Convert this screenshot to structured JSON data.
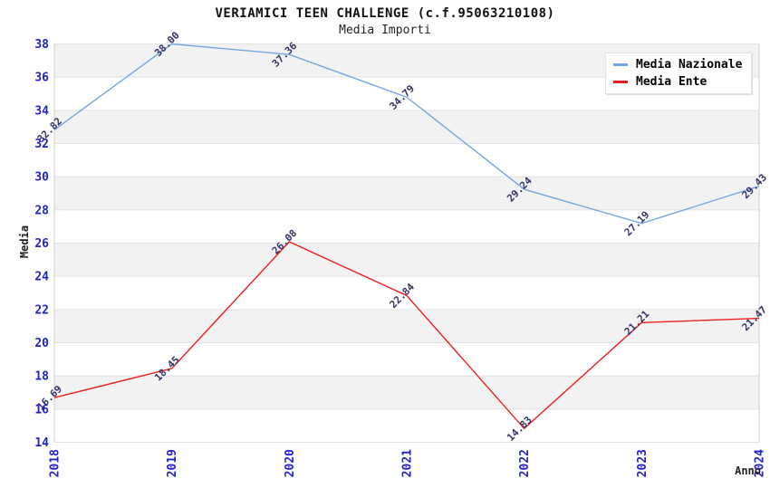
{
  "header": {
    "title": "VERIAMICI TEEN CHALLENGE (c.f.95063210108)",
    "subtitle": "Media Importi"
  },
  "axes": {
    "x_label": "Anno",
    "y_label": "Media",
    "y_ticks": [
      38,
      36,
      34,
      32,
      30,
      28,
      26,
      24,
      22,
      20,
      18,
      16,
      14
    ],
    "x_ticks": [
      "2018",
      "2019",
      "2020",
      "2021",
      "2022",
      "2023",
      "2024"
    ]
  },
  "legend": {
    "items": [
      {
        "label": "Media Nazionale",
        "color": "#74a7e0"
      },
      {
        "label": "Media Ente",
        "color": "#ee1c1c"
      }
    ]
  },
  "colors": {
    "tick_label": "#2222cc",
    "value_label": "#333366",
    "band_fill": "#f2f2f2",
    "gridline": "#e3e3e3",
    "plot_border": "#d0d0d0",
    "blue_line": "#74a7e0",
    "red_line": "#ee1c1c"
  },
  "chart_data": {
    "type": "line",
    "title": "VERIAMICI TEEN CHALLENGE (c.f.95063210108)",
    "subtitle": "Media Importi",
    "xlabel": "Anno",
    "ylabel": "Media",
    "categories": [
      "2018",
      "2019",
      "2020",
      "2021",
      "2022",
      "2023",
      "2024"
    ],
    "ylim": [
      14,
      38
    ],
    "ytick_step": 2,
    "grid": "horizontal-alternating-bands",
    "legend_position": "top-right",
    "series": [
      {
        "name": "Media Nazionale",
        "color": "#74a7e0",
        "values": [
          32.82,
          38.0,
          37.36,
          34.79,
          29.24,
          27.19,
          29.43
        ],
        "labels": [
          "32.82",
          "38.00",
          "37.36",
          "34.79",
          "29.24",
          "27.19",
          "29.43"
        ]
      },
      {
        "name": "Media Ente",
        "color": "#ee1c1c",
        "values": [
          16.69,
          18.45,
          26.08,
          22.84,
          14.83,
          21.21,
          21.47
        ],
        "labels": [
          "16.69",
          "18.45",
          "26.08",
          "22.84",
          "14.83",
          "21.21",
          "21.47"
        ]
      }
    ]
  }
}
